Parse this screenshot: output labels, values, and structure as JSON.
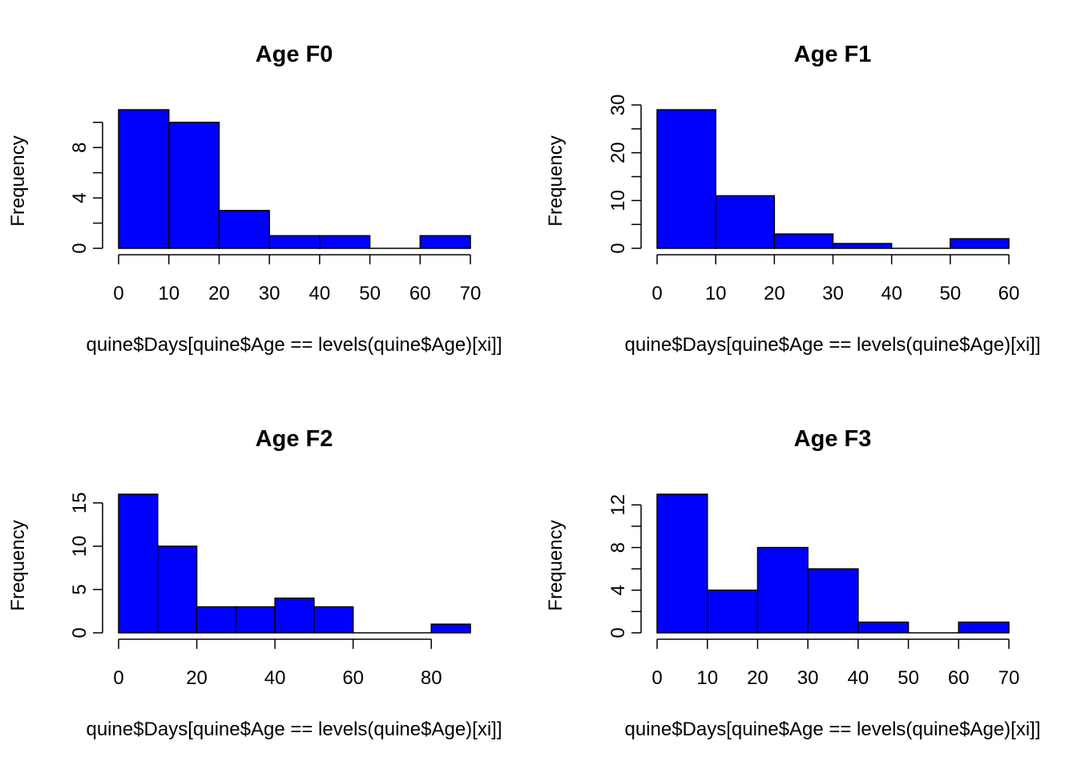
{
  "chart_data": [
    {
      "type": "bar",
      "title": "Age  F0",
      "xlabel": "quine$Days[quine$Age == levels(quine$Age)[xi]]",
      "ylabel": "Frequency",
      "bin_edges": [
        0,
        10,
        20,
        30,
        40,
        50,
        60,
        70
      ],
      "values": [
        11,
        10,
        3,
        1,
        1,
        0,
        1
      ],
      "xlim": [
        0,
        70
      ],
      "ylim": [
        0,
        11
      ],
      "x_ticks": [
        0,
        10,
        20,
        30,
        40,
        50,
        60,
        70
      ],
      "y_ticks": [
        0,
        2,
        4,
        6,
        8,
        10
      ],
      "y_tick_labels": [
        "0",
        "",
        "4",
        "",
        "8",
        ""
      ],
      "bar_color": "#0000FF"
    },
    {
      "type": "bar",
      "title": "Age  F1",
      "xlabel": "quine$Days[quine$Age == levels(quine$Age)[xi]]",
      "ylabel": "Frequency",
      "bin_edges": [
        0,
        10,
        20,
        30,
        40,
        50,
        60
      ],
      "values": [
        29,
        11,
        3,
        1,
        0,
        2
      ],
      "xlim": [
        0,
        60
      ],
      "ylim": [
        0,
        29
      ],
      "x_ticks": [
        0,
        10,
        20,
        30,
        40,
        50,
        60
      ],
      "y_ticks": [
        0,
        5,
        10,
        15,
        20,
        25,
        30
      ],
      "y_tick_labels": [
        "0",
        "",
        "10",
        "",
        "20",
        "",
        "30"
      ],
      "bar_color": "#0000FF"
    },
    {
      "type": "bar",
      "title": "Age  F2",
      "xlabel": "quine$Days[quine$Age == levels(quine$Age)[xi]]",
      "ylabel": "Frequency",
      "bin_edges": [
        0,
        10,
        20,
        30,
        40,
        50,
        60,
        70,
        80,
        90
      ],
      "values": [
        16,
        10,
        3,
        3,
        4,
        3,
        0,
        0,
        1
      ],
      "xlim": [
        0,
        90
      ],
      "ylim": [
        0,
        16
      ],
      "x_ticks": [
        0,
        20,
        40,
        60,
        80
      ],
      "y_ticks": [
        0,
        5,
        10,
        15
      ],
      "y_tick_labels": [
        "0",
        "5",
        "10",
        "15"
      ],
      "bar_color": "#0000FF"
    },
    {
      "type": "bar",
      "title": "Age  F3",
      "xlabel": "quine$Days[quine$Age == levels(quine$Age)[xi]]",
      "ylabel": "Frequency",
      "bin_edges": [
        0,
        10,
        20,
        30,
        40,
        50,
        60,
        70
      ],
      "values": [
        13,
        4,
        8,
        6,
        1,
        0,
        1
      ],
      "xlim": [
        0,
        70
      ],
      "ylim": [
        0,
        13
      ],
      "x_ticks": [
        0,
        10,
        20,
        30,
        40,
        50,
        60,
        70
      ],
      "y_ticks": [
        0,
        2,
        4,
        6,
        8,
        10,
        12
      ],
      "y_tick_labels": [
        "0",
        "",
        "4",
        "",
        "8",
        "",
        "12"
      ],
      "bar_color": "#0000FF"
    }
  ]
}
